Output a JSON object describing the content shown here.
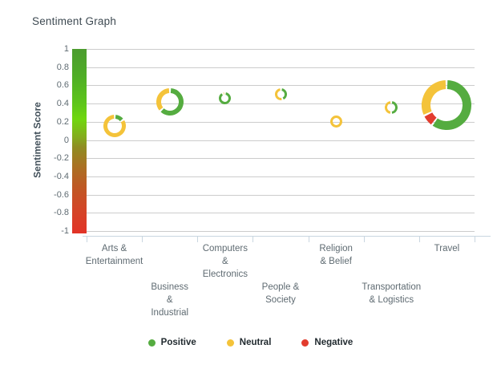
{
  "title": "Sentiment Graph",
  "y_axis": {
    "label": "Sentiment Score",
    "ticks": [
      "1",
      "0.8",
      "0.6",
      "0.4",
      "0.2",
      "0",
      "-0.2",
      "-0.4",
      "-0.6",
      "-0.8",
      "-1"
    ]
  },
  "colors": {
    "positive": "#55ac40",
    "neutral": "#f4c33a",
    "negative": "#e23c2e",
    "gridline": "#cccccc",
    "axis_line": "#c9d6e0"
  },
  "color_scale": {
    "stops": [
      "#4c9c2f 0%",
      "#4fae26 15%",
      "#5ec61a 30%",
      "#70d70e 38%",
      "#84ab1d 48%",
      "#8f8d22 53%",
      "#a87323 63%",
      "#bd5a24 74%",
      "#d24727 86%",
      "#e23327 100%"
    ]
  },
  "legend": {
    "position": "bottom",
    "items": [
      {
        "label": "Positive",
        "sentiment": "positive"
      },
      {
        "label": "Neutral",
        "sentiment": "neutral"
      },
      {
        "label": "Negative",
        "sentiment": "negative"
      }
    ]
  },
  "chart_data": {
    "type": "scatter",
    "marker": "donut",
    "title": "Sentiment Graph",
    "xlabel": "",
    "ylabel": "Sentiment Score",
    "ylim": [
      -1,
      1
    ],
    "grid": true,
    "legend_position": "bottom",
    "categories": [
      "Arts & Entertainment",
      "Business & Industrial",
      "Computers & Electronics",
      "People & Society",
      "Religion & Belief",
      "Transportation & Logistics",
      "Travel"
    ],
    "points": [
      {
        "category": "Arts & Entertainment",
        "label_lines": [
          "Arts &",
          "Entertainment"
        ],
        "label_row": 1,
        "score": 0.15,
        "diameter": 28,
        "segments": [
          {
            "sentiment": "positive",
            "fraction": 0.15
          },
          {
            "sentiment": "neutral",
            "fraction": 0.85
          }
        ]
      },
      {
        "category": "Business & Industrial",
        "label_lines": [
          "Business",
          "&",
          "Industrial"
        ],
        "label_row": 2,
        "score": 0.42,
        "diameter": 34,
        "segments": [
          {
            "sentiment": "positive",
            "fraction": 0.63
          },
          {
            "sentiment": "neutral",
            "fraction": 0.37
          }
        ]
      },
      {
        "category": "Computers & Electronics",
        "label_lines": [
          "Computers",
          "&",
          "Electronics"
        ],
        "label_row": 1,
        "score": 0.46,
        "diameter": 15,
        "segments": [
          {
            "sentiment": "positive",
            "fraction": 0.93
          },
          {
            "sentiment": "neutral",
            "fraction": 0.07
          }
        ]
      },
      {
        "category": "People & Society",
        "label_lines": [
          "People &",
          "Society"
        ],
        "label_row": 2,
        "score": 0.5,
        "diameter": 15,
        "segments": [
          {
            "sentiment": "positive",
            "fraction": 0.45
          },
          {
            "sentiment": "neutral",
            "fraction": 0.55
          }
        ]
      },
      {
        "category": "Religion & Belief",
        "label_lines": [
          "Religion",
          "& Belief"
        ],
        "label_row": 1,
        "score": 0.2,
        "diameter": 15,
        "segments": [
          {
            "sentiment": "neutral",
            "fraction": 1.0
          }
        ]
      },
      {
        "category": "Transportation & Logistics",
        "label_lines": [
          "Transportation",
          "& Logistics"
        ],
        "label_row": 2,
        "score": 0.36,
        "diameter": 16,
        "segments": [
          {
            "sentiment": "positive",
            "fraction": 0.5
          },
          {
            "sentiment": "neutral",
            "fraction": 0.5
          }
        ]
      },
      {
        "category": "Travel",
        "label_lines": [
          "Travel"
        ],
        "label_row": 1,
        "score": 0.38,
        "diameter": 62,
        "segments": [
          {
            "sentiment": "positive",
            "fraction": 0.6
          },
          {
            "sentiment": "negative",
            "fraction": 0.08
          },
          {
            "sentiment": "neutral",
            "fraction": 0.32
          }
        ]
      }
    ]
  }
}
